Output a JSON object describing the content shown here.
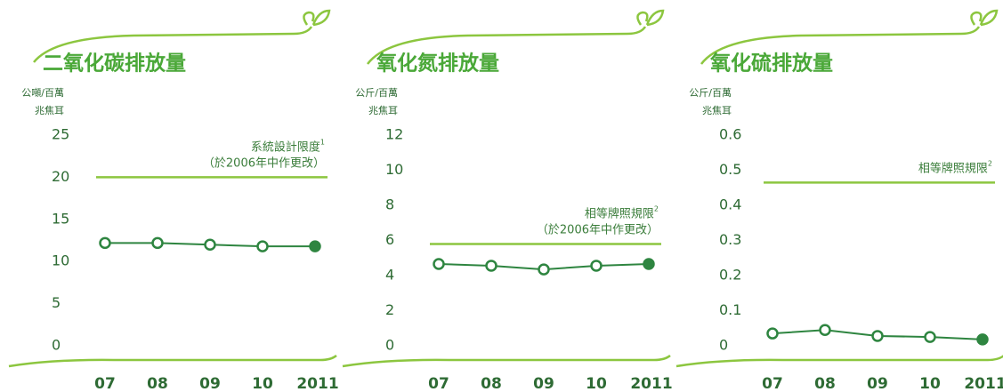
{
  "chart_data": [
    {
      "type": "line",
      "title": "二氧化碳排放量",
      "y_label": [
        "公噸/百萬",
        "兆焦耳"
      ],
      "categories": [
        "07",
        "08",
        "09",
        "10",
        "2011"
      ],
      "values": [
        12.2,
        12.2,
        12.0,
        11.8,
        11.8
      ],
      "color": "#2e8540",
      "highlight_last": true,
      "ylim": [
        0,
        25
      ],
      "yticks": [
        0,
        5,
        10,
        15,
        20,
        25
      ],
      "limit": 20,
      "limit_color": "#8cc63f",
      "annotation": {
        "lines": [
          "系統設計限度",
          "（於2006年中作更改）"
        ],
        "superscript": "1"
      }
    },
    {
      "type": "line",
      "title": "氧化氮排放量",
      "y_label": [
        "公斤/百萬",
        "兆焦耳"
      ],
      "categories": [
        "07",
        "08",
        "09",
        "10",
        "2011"
      ],
      "values": [
        4.66,
        4.56,
        4.35,
        4.56,
        4.66
      ],
      "color": "#2e8540",
      "highlight_last": true,
      "ylim": [
        0,
        12
      ],
      "yticks": [
        0,
        2,
        4,
        6,
        8,
        10,
        12
      ],
      "limit": 5.8,
      "limit_color": "#8cc63f",
      "annotation": {
        "lines": [
          "相等牌照規限",
          "（於2006年中作更改）"
        ],
        "superscript": "2"
      }
    },
    {
      "type": "line",
      "title": "氧化硫排放量",
      "y_label": [
        "公斤/百萬",
        "兆焦耳"
      ],
      "categories": [
        "07",
        "08",
        "09",
        "10",
        "2011"
      ],
      "values": [
        0.035,
        0.045,
        0.028,
        0.025,
        0.018
      ],
      "color": "#2e8540",
      "highlight_last": true,
      "ylim": [
        0,
        0.6
      ],
      "yticks": [
        0,
        0.1,
        0.2,
        0.3,
        0.4,
        0.5,
        0.6
      ],
      "limit": 0.465,
      "limit_color": "#8cc63f",
      "annotation": {
        "lines": [
          "相等牌照規限"
        ],
        "superscript": "2"
      }
    }
  ]
}
